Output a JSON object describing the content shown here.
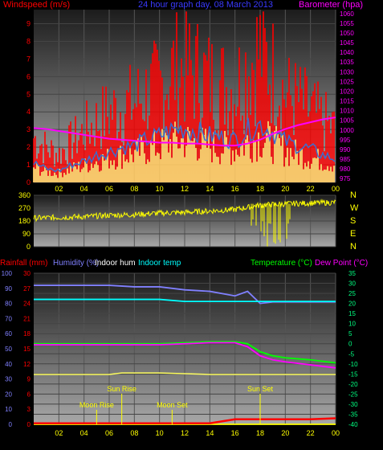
{
  "page_title": "24 hour graph day, 08 March 2013",
  "colors": {
    "windspeed": "#ff0000",
    "gust": "#ff0000",
    "avg_wind": "#3a6fd0",
    "wind_fill": "#ffff80",
    "barometer": "#ff00ff",
    "winddir": "#ffff00",
    "rainfall": "#ff0000",
    "humidity": "#8080ff",
    "indoor_hum": "#ffffff",
    "indoor_temp": "#00ffff",
    "temperature": "#00ff00",
    "dew_point": "#ff00ff",
    "moon_sun": "#ffff00",
    "panel_bg_top": "#202020",
    "panel_bg_bottom": "#a0a0a0"
  },
  "chart_data": [
    {
      "type": "line",
      "title": "24 hour graph day, 08 March 2013",
      "left_axis_label": "Windspeed (m/s)",
      "right_axis_label": "Barometer (hpa)",
      "x_ticks": [
        "02",
        "04",
        "06",
        "08",
        "10",
        "12",
        "14",
        "16",
        "18",
        "20",
        "22",
        "00"
      ],
      "left_ticks": [
        "0",
        "1",
        "2",
        "3",
        "4",
        "5",
        "6",
        "7",
        "8",
        "9"
      ],
      "right_ticks": [
        "975",
        "980",
        "985",
        "990",
        "995",
        "1000",
        "1005",
        "1010",
        "1015",
        "1020",
        "1025",
        "1030",
        "1035",
        "1040",
        "1045",
        "1050",
        "1055",
        "1060"
      ],
      "ylim_left": [
        0,
        9.8
      ],
      "ylim_right": [
        973,
        1062
      ],
      "x_hours": [
        0,
        1,
        2,
        3,
        4,
        5,
        6,
        7,
        8,
        9,
        10,
        11,
        12,
        13,
        14,
        15,
        16,
        17,
        18,
        19,
        20,
        21,
        22,
        23,
        24
      ],
      "series": [
        {
          "name": "Windspeed (m/s)",
          "values": [
            2.2,
            1.7,
            1.4,
            2.0,
            2.5,
            3.0,
            3.4,
            3.7,
            3.9,
            4.4,
            4.7,
            5.5,
            5.6,
            5.4,
            5.0,
            4.8,
            4.6,
            5.8,
            6.5,
            5.5,
            4.3,
            4.0,
            3.5,
            3.0,
            2.6
          ]
        },
        {
          "name": "Average windspeed",
          "values": [
            1.0,
            0.7,
            0.6,
            0.9,
            1.1,
            1.4,
            1.6,
            1.8,
            1.9,
            2.2,
            2.4,
            2.7,
            2.8,
            2.6,
            2.4,
            2.3,
            2.2,
            2.7,
            3.0,
            2.6,
            2.1,
            1.9,
            1.7,
            1.4,
            1.2
          ]
        },
        {
          "name": "Barometer (hpa)",
          "values": [
            1001,
            1000.5,
            999.5,
            998.5,
            997.5,
            996.5,
            995.5,
            995,
            994.5,
            994,
            993.5,
            993.5,
            993,
            993,
            992.5,
            992,
            992,
            993,
            995,
            998,
            1000.5,
            1002.5,
            1004,
            1005.5,
            1006.5
          ]
        }
      ]
    },
    {
      "type": "line",
      "left_ticks": [
        "0",
        "90",
        "180",
        "270",
        "360"
      ],
      "right_labels": [
        "N",
        "W",
        "S",
        "E",
        "N"
      ],
      "ylim": [
        0,
        360
      ],
      "x_hours": [
        0,
        2,
        4,
        6,
        8,
        10,
        12,
        14,
        16,
        18,
        20,
        22,
        24
      ],
      "series": [
        {
          "name": "Wind direction",
          "values": [
            200,
            205,
            210,
            220,
            225,
            235,
            240,
            250,
            260,
            290,
            300,
            305,
            310
          ]
        }
      ]
    },
    {
      "type": "line",
      "legend": [
        "Rainfall (mm)",
        "Humidity (%)",
        "Indoor hum",
        "Indoor temp",
        "Temperature (°C)",
        "Dew Point (°C)"
      ],
      "rain_ticks": [
        "0",
        "3",
        "6",
        "9",
        "12",
        "15",
        "18",
        "21",
        "24",
        "27",
        "30"
      ],
      "humidity_ticks": [
        "0",
        "10",
        "20",
        "30",
        "40",
        "50",
        "60",
        "70",
        "80",
        "90",
        "100"
      ],
      "temp_ticks": [
        "35",
        "30",
        "25",
        "20",
        "15",
        "10",
        "5",
        "0",
        "-5",
        "-10",
        "-15",
        "-20",
        "-25",
        "-30",
        "-35",
        "-40"
      ],
      "ylim_temp": [
        -40,
        35
      ],
      "ylim_humidity": [
        0,
        100
      ],
      "ylim_rain": [
        0,
        30
      ],
      "x_ticks": [
        "02",
        "04",
        "06",
        "08",
        "10",
        "12",
        "14",
        "16",
        "18",
        "20",
        "22",
        "00"
      ],
      "x_hours": [
        0,
        2,
        4,
        6,
        8,
        10,
        12,
        14,
        16,
        17,
        18,
        19,
        20,
        22,
        24
      ],
      "series": [
        {
          "name": "Humidity (%)",
          "values": [
            92,
            92,
            92,
            92,
            91,
            91,
            89,
            88,
            85,
            88,
            80,
            81,
            81,
            81,
            81
          ]
        },
        {
          "name": "Indoor temp",
          "values": [
            22,
            22,
            22,
            22,
            22,
            22,
            21,
            21,
            21,
            21,
            21,
            21,
            21,
            21,
            21
          ]
        },
        {
          "name": "Temperature (°C)",
          "values": [
            0,
            0,
            0,
            0,
            0,
            0,
            0.5,
            1,
            1,
            0,
            -4,
            -6,
            -7,
            -8,
            -9.5
          ]
        },
        {
          "name": "Dew Point (°C)",
          "values": [
            -0.5,
            -0.5,
            -0.5,
            -0.5,
            -0.5,
            -0.5,
            0,
            0.5,
            0.5,
            -1.5,
            -6,
            -8,
            -9,
            -10.5,
            -12
          ]
        },
        {
          "name": "Indoor hum",
          "values": [
            0,
            0,
            0,
            0,
            0,
            0,
            0,
            0,
            0,
            0,
            0,
            0,
            0,
            0,
            0
          ]
        },
        {
          "name": "Rainfall (mm)",
          "values": [
            0.2,
            0.2,
            0.2,
            0.2,
            0.2,
            0.2,
            0.2,
            0.2,
            1.0,
            1.0,
            1.0,
            1.0,
            1.0,
            1.0,
            1.2
          ]
        }
      ],
      "events": [
        {
          "label": "Moon Rise",
          "hour": 5.0
        },
        {
          "label": "Sun Rise",
          "hour": 7.0
        },
        {
          "label": "Moon Set",
          "hour": 11.0
        },
        {
          "label": "Sun Set",
          "hour": 18.0
        }
      ]
    }
  ]
}
